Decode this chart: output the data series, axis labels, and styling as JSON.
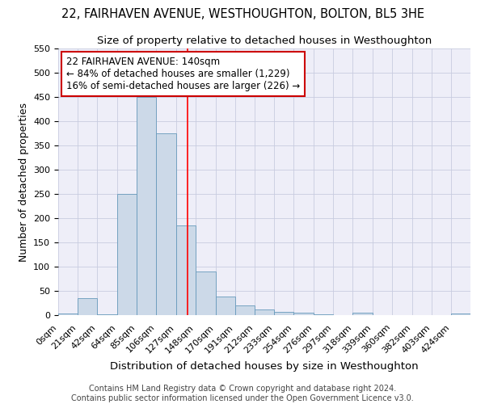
{
  "title": "22, FAIRHAVEN AVENUE, WESTHOUGHTON, BOLTON, BL5 3HE",
  "subtitle": "Size of property relative to detached houses in Westhoughton",
  "xlabel": "Distribution of detached houses by size in Westhoughton",
  "ylabel": "Number of detached properties",
  "bin_labels": [
    "0sqm",
    "21sqm",
    "42sqm",
    "64sqm",
    "85sqm",
    "106sqm",
    "127sqm",
    "148sqm",
    "170sqm",
    "191sqm",
    "212sqm",
    "233sqm",
    "254sqm",
    "276sqm",
    "297sqm",
    "318sqm",
    "339sqm",
    "360sqm",
    "382sqm",
    "403sqm",
    "424sqm"
  ],
  "bin_edges": [
    0,
    21,
    42,
    64,
    85,
    106,
    127,
    148,
    170,
    191,
    212,
    233,
    254,
    276,
    297,
    318,
    339,
    360,
    382,
    403,
    424,
    445
  ],
  "bar_values": [
    3,
    35,
    1,
    250,
    450,
    375,
    185,
    90,
    38,
    20,
    12,
    6,
    5,
    1,
    0,
    5,
    0,
    0,
    0,
    0,
    3
  ],
  "bar_color": "#ccd9e8",
  "bar_edge_color": "#6699bb",
  "red_line_x": 140,
  "annotation_line1": "22 FAIRHAVEN AVENUE: 140sqm",
  "annotation_line2": "← 84% of detached houses are smaller (1,229)",
  "annotation_line3": "16% of semi-detached houses are larger (226) →",
  "annotation_box_color": "#ffffff",
  "annotation_box_edge": "#cc0000",
  "footer_line1": "Contains HM Land Registry data © Crown copyright and database right 2024.",
  "footer_line2": "Contains public sector information licensed under the Open Government Licence v3.0.",
  "ylim": [
    0,
    550
  ],
  "yticks": [
    0,
    50,
    100,
    150,
    200,
    250,
    300,
    350,
    400,
    450,
    500,
    550
  ],
  "grid_color": "#c8cce0",
  "bg_color": "#eeeef8",
  "title_fontsize": 10.5,
  "subtitle_fontsize": 9.5,
  "axis_label_fontsize": 9,
  "tick_fontsize": 8,
  "annotation_fontsize": 8.5,
  "footer_fontsize": 7
}
